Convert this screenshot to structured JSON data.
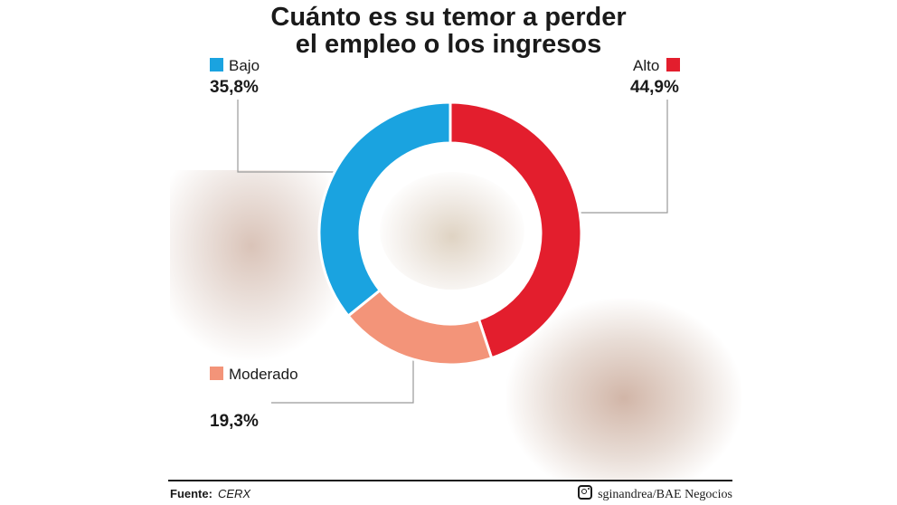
{
  "chart_data": {
    "type": "pie",
    "title": [
      "Cuánto es su temor a perder",
      "el empleo o los ingresos"
    ],
    "categories": [
      "Alto",
      "Moderado",
      "Bajo"
    ],
    "values": [
      44.9,
      19.3,
      35.8
    ],
    "value_labels": [
      "44,9%",
      "19,3%",
      "35,8%"
    ],
    "colors": [
      "#e31e2d",
      "#f39479",
      "#1aa3e0"
    ],
    "donut": true
  },
  "footer": {
    "source_label": "Fuente:",
    "source_value": "CERX",
    "credit": "sginandrea/BAE Negocios",
    "credit_icon": "instagram-icon"
  }
}
